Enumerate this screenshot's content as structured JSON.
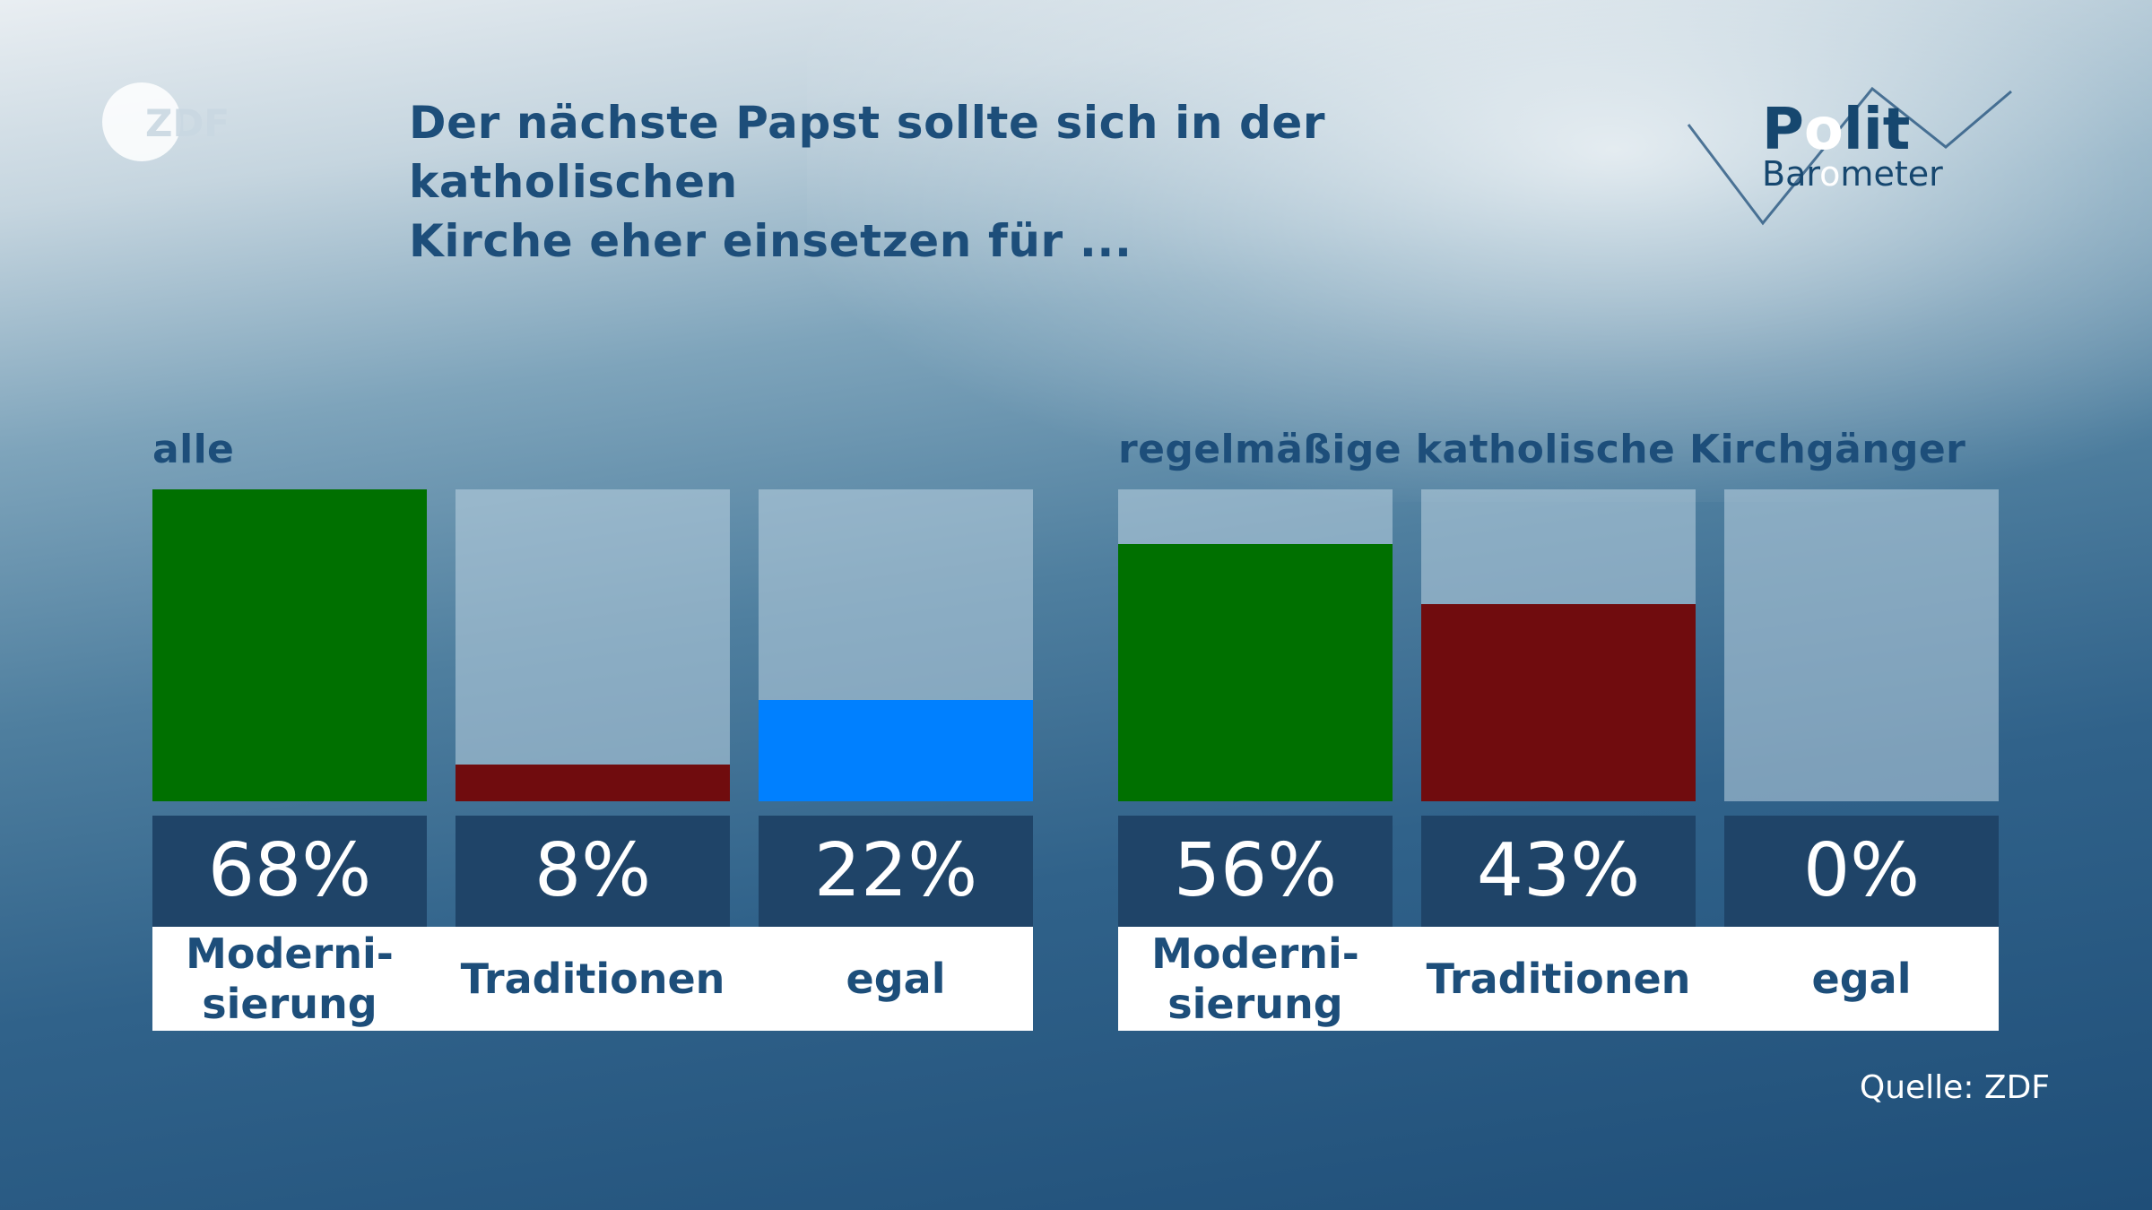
{
  "broadcaster": {
    "logo_text": "ZDF"
  },
  "title": "Der nächste Papst sollte sich in der katholischen Kirche eher einsetzen für ...",
  "title_lines": [
    "Der nächste Papst sollte sich in der katholischen",
    "Kirche eher einsetzen für ..."
  ],
  "brand": {
    "polit": "Polit",
    "barometer": "Barometer"
  },
  "source": "Quelle: ZDF",
  "colors": {
    "Modernisierung": "#007000",
    "Traditionen": "#700c0e",
    "egal": "#0080ff",
    "value_box": "#1f4468",
    "heading": "#1d4e7a"
  },
  "chart_data": [
    {
      "type": "bar",
      "group": "alle",
      "categories": [
        "Moderni-\nsierung",
        "Traditionen",
        "egal"
      ],
      "values": [
        68,
        8,
        22
      ],
      "value_labels": [
        "68%",
        "8%",
        "22%"
      ],
      "unit": "%",
      "ylim": [
        0,
        68
      ],
      "grid": false,
      "legend": "none"
    },
    {
      "type": "bar",
      "group": "regelmäßige katholische Kirchgänger",
      "categories": [
        "Moderni-\nsierung",
        "Traditionen",
        "egal"
      ],
      "values": [
        56,
        43,
        0
      ],
      "value_labels": [
        "56%",
        "43%",
        "0%"
      ],
      "unit": "%",
      "ylim": [
        0,
        68
      ],
      "grid": false,
      "legend": "none"
    }
  ]
}
